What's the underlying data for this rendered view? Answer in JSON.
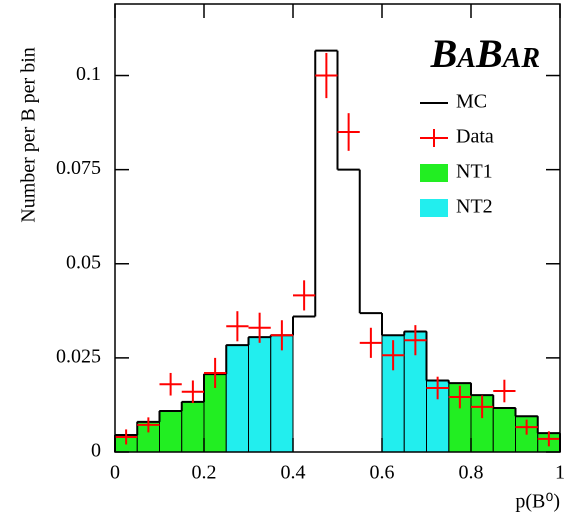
{
  "chart_data": {
    "type": "histogram",
    "xlabel": "p(B⁰)",
    "ylabel": "Number per B per bin",
    "logo": "BaBar",
    "bins": [
      0,
      0.05,
      0.1,
      0.15,
      0.2,
      0.25,
      0.3,
      0.35,
      0.4,
      0.45,
      0.5,
      0.55,
      0.6,
      0.65,
      0.7,
      0.75,
      0.8,
      0.85,
      0.9,
      0.95,
      1
    ],
    "xlim": [
      0,
      1
    ],
    "ylim": [
      0,
      0.119
    ],
    "xticks": [
      0,
      0.2,
      0.4,
      0.6,
      0.8,
      1
    ],
    "yticks": [
      0,
      0.025,
      0.05,
      0.075,
      0.1
    ],
    "legend": "upper right",
    "series": [
      {
        "name": "MC",
        "color": "#000000",
        "style": "step",
        "values": [
          0.0045,
          0.008,
          0.0109,
          0.0133,
          0.0207,
          0.0284,
          0.0305,
          0.031,
          0.036,
          0.1066,
          0.075,
          0.0369,
          0.031,
          0.032,
          0.019,
          0.0183,
          0.0151,
          0.0117,
          0.0095,
          0.005
        ]
      },
      {
        "name": "Data",
        "color": "#ff0000",
        "style": "errorbar",
        "x": [
          0.025,
          0.075,
          0.125,
          0.175,
          0.225,
          0.275,
          0.325,
          0.375,
          0.425,
          0.475,
          0.525,
          0.575,
          0.625,
          0.675,
          0.725,
          0.775,
          0.825,
          0.875,
          0.925,
          0.975
        ],
        "values": [
          0.004,
          0.0072,
          0.018,
          0.016,
          0.021,
          0.0334,
          0.033,
          0.031,
          0.0416,
          0.1,
          0.085,
          0.029,
          0.0257,
          0.0297,
          0.017,
          0.0146,
          0.012,
          0.0162,
          0.0066,
          0.0035
        ],
        "errors": [
          0.002,
          0.002,
          0.003,
          0.003,
          0.004,
          0.004,
          0.004,
          0.004,
          0.004,
          0.006,
          0.005,
          0.004,
          0.004,
          0.004,
          0.003,
          0.003,
          0.003,
          0.003,
          0.002,
          0.002
        ]
      },
      {
        "name": "NT1",
        "color": "#22ee22",
        "style": "fill",
        "values": [
          0.0045,
          0.008,
          0.0109,
          0.0133,
          0.0207,
          null,
          null,
          null,
          null,
          null,
          null,
          null,
          null,
          null,
          null,
          0.0183,
          0.0151,
          0.0117,
          0.0095,
          0.005
        ]
      },
      {
        "name": "NT2",
        "color": "#22eeee",
        "style": "fill",
        "values": [
          null,
          null,
          null,
          null,
          null,
          0.0284,
          0.0305,
          0.031,
          null,
          null,
          null,
          null,
          0.031,
          0.032,
          0.019,
          null,
          null,
          null,
          null,
          null
        ]
      }
    ]
  }
}
